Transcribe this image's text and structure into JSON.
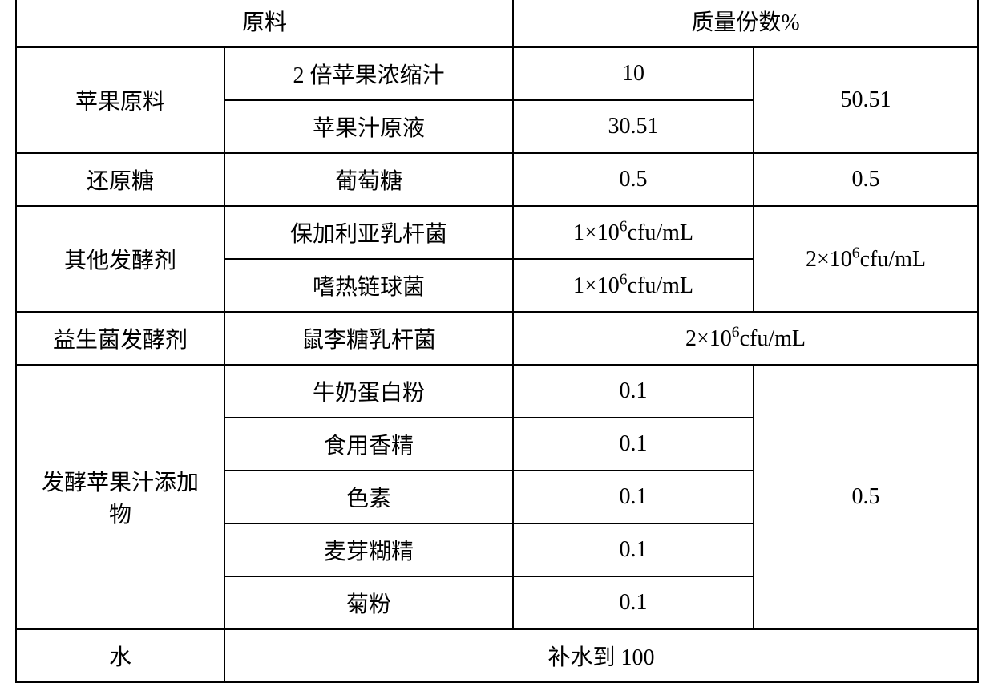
{
  "table": {
    "header": {
      "col1": "原料",
      "col2": "质量份数%"
    },
    "rows": {
      "apple_material": {
        "category": "苹果原料",
        "items": [
          {
            "name": "2 倍苹果浓缩汁",
            "value": "10"
          },
          {
            "name": "苹果汁原液",
            "value": "30.51"
          }
        ],
        "total": "50.51"
      },
      "reducing_sugar": {
        "category": "还原糖",
        "item_name": "葡萄糖",
        "value": "0.5",
        "total": "0.5"
      },
      "other_ferment": {
        "category": "其他发酵剂",
        "items": [
          {
            "name": "保加利亚乳杆菌",
            "value_base": "1×10",
            "value_exp": "6",
            "value_unit": "cfu/mL"
          },
          {
            "name": "嗜热链球菌",
            "value_base": "1×10",
            "value_exp": "6",
            "value_unit": "cfu/mL"
          }
        ],
        "total_base": "2×10",
        "total_exp": "6",
        "total_unit": "cfu/mL"
      },
      "probiotic": {
        "category": "益生菌发酵剂",
        "item_name": "鼠李糖乳杆菌",
        "value_base": "2×10",
        "value_exp": "6",
        "value_unit": "cfu/mL"
      },
      "additive": {
        "category_line1": "发酵苹果汁添加",
        "category_line2": "物",
        "items": [
          {
            "name": "牛奶蛋白粉",
            "value": "0.1"
          },
          {
            "name": "食用香精",
            "value": "0.1"
          },
          {
            "name": "色素",
            "value": "0.1"
          },
          {
            "name": "麦芽糊精",
            "value": "0.1"
          },
          {
            "name": "菊粉",
            "value": "0.1"
          }
        ],
        "total": "0.5"
      },
      "water": {
        "category": "水",
        "value": "补水到 100"
      }
    }
  }
}
